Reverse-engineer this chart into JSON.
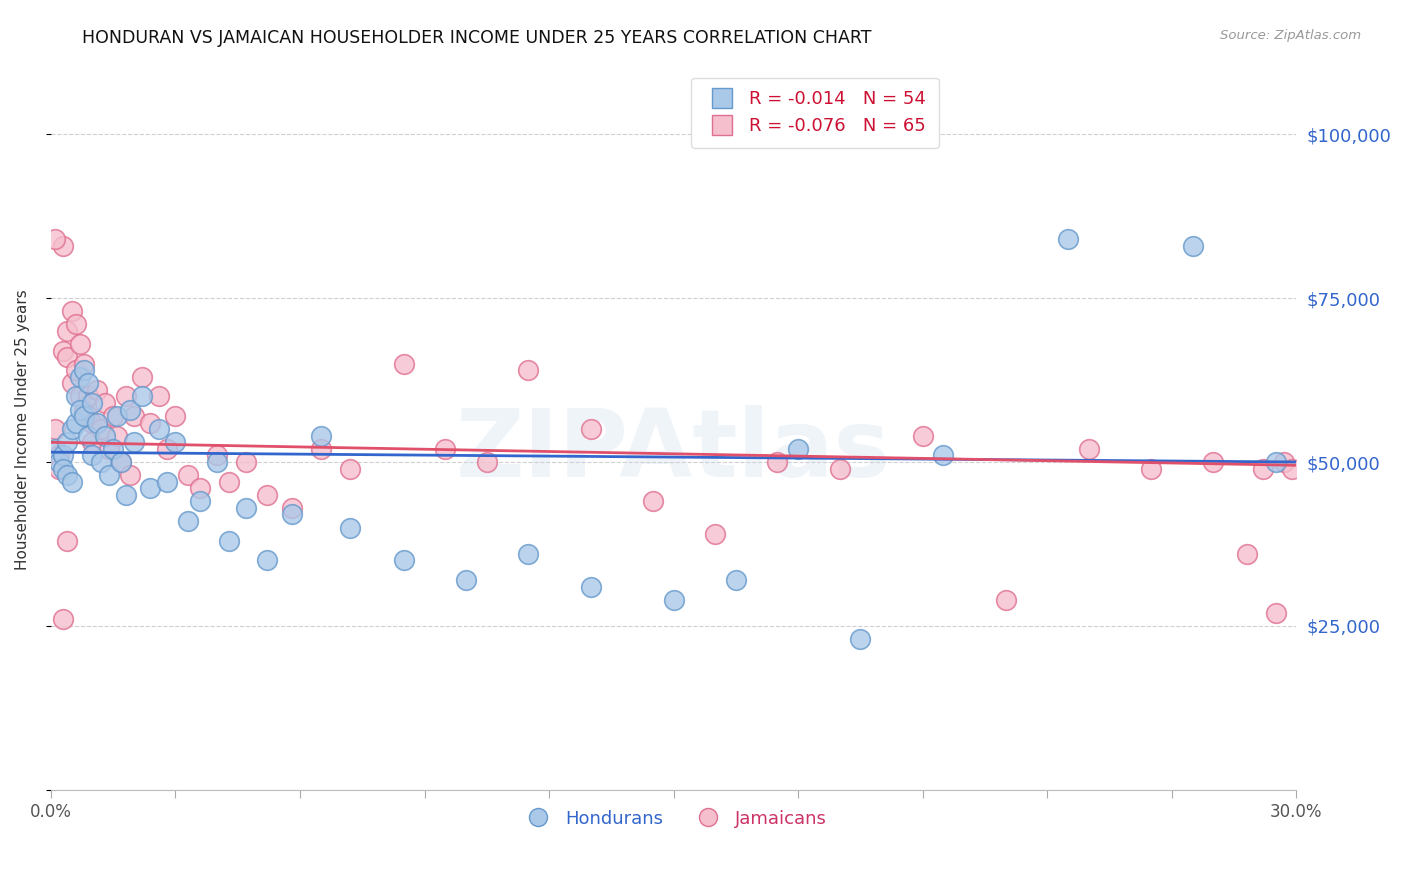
{
  "title": "HONDURAN VS JAMAICAN HOUSEHOLDER INCOME UNDER 25 YEARS CORRELATION CHART",
  "source": "Source: ZipAtlas.com",
  "ylabel": "Householder Income Under 25 years",
  "xmin": 0.0,
  "xmax": 0.3,
  "ymin": 0,
  "ymax": 110000,
  "yticks": [
    0,
    25000,
    50000,
    75000,
    100000
  ],
  "ytick_labels": [
    "",
    "$25,000",
    "$50,000",
    "$75,000",
    "$100,000"
  ],
  "honduran_color": "#aac8e8",
  "honduran_edge": "#6699cc",
  "jamaican_color": "#f5bfce",
  "jamaican_edge": "#e07090",
  "line_honduran": "#3366cc",
  "line_jamaican": "#e0506a",
  "legend_label_honduran": "Hondurans",
  "legend_label_jamaican": "Jamaicans",
  "legend_r_honduran": "R = -0.014",
  "legend_n_honduran": "N = 54",
  "legend_r_jamaican": "R = -0.076",
  "legend_n_jamaican": "N = 65",
  "watermark": "ZIPAtlas",
  "background_color": "#ffffff",
  "grid_color": "#d0d0d0",
  "trend_h_y0": 51500,
  "trend_h_y1": 50000,
  "trend_j_y0": 53000,
  "trend_j_y1": 49500,
  "hondurans_x": [
    0.001,
    0.002,
    0.003,
    0.003,
    0.004,
    0.004,
    0.005,
    0.005,
    0.006,
    0.006,
    0.007,
    0.007,
    0.008,
    0.008,
    0.009,
    0.009,
    0.01,
    0.01,
    0.011,
    0.012,
    0.013,
    0.014,
    0.015,
    0.016,
    0.017,
    0.018,
    0.019,
    0.02,
    0.022,
    0.024,
    0.026,
    0.028,
    0.03,
    0.033,
    0.036,
    0.04,
    0.043,
    0.047,
    0.052,
    0.058,
    0.065,
    0.072,
    0.085,
    0.1,
    0.115,
    0.13,
    0.15,
    0.165,
    0.18,
    0.195,
    0.215,
    0.245,
    0.275,
    0.295
  ],
  "hondurans_y": [
    52000,
    50000,
    51000,
    49000,
    53000,
    48000,
    55000,
    47000,
    60000,
    56000,
    63000,
    58000,
    64000,
    57000,
    62000,
    54000,
    59000,
    51000,
    56000,
    50000,
    54000,
    48000,
    52000,
    57000,
    50000,
    45000,
    58000,
    53000,
    60000,
    46000,
    55000,
    47000,
    53000,
    41000,
    44000,
    50000,
    38000,
    43000,
    35000,
    42000,
    54000,
    40000,
    35000,
    32000,
    36000,
    31000,
    29000,
    32000,
    52000,
    23000,
    51000,
    84000,
    83000,
    50000
  ],
  "jamaicans_x": [
    0.001,
    0.002,
    0.003,
    0.003,
    0.004,
    0.004,
    0.005,
    0.005,
    0.006,
    0.006,
    0.007,
    0.007,
    0.008,
    0.008,
    0.009,
    0.009,
    0.01,
    0.01,
    0.011,
    0.012,
    0.013,
    0.014,
    0.015,
    0.016,
    0.017,
    0.018,
    0.019,
    0.02,
    0.022,
    0.024,
    0.026,
    0.028,
    0.03,
    0.033,
    0.036,
    0.04,
    0.043,
    0.047,
    0.052,
    0.058,
    0.065,
    0.072,
    0.085,
    0.095,
    0.105,
    0.115,
    0.13,
    0.145,
    0.16,
    0.175,
    0.19,
    0.21,
    0.23,
    0.25,
    0.265,
    0.28,
    0.288,
    0.292,
    0.295,
    0.297,
    0.299,
    0.001,
    0.002,
    0.003,
    0.004
  ],
  "jamaicans_y": [
    55000,
    51000,
    83000,
    67000,
    70000,
    66000,
    73000,
    62000,
    71000,
    64000,
    68000,
    60000,
    65000,
    58000,
    60000,
    57000,
    56000,
    53000,
    61000,
    55000,
    59000,
    52000,
    57000,
    54000,
    50000,
    60000,
    48000,
    57000,
    63000,
    56000,
    60000,
    52000,
    57000,
    48000,
    46000,
    51000,
    47000,
    50000,
    45000,
    43000,
    52000,
    49000,
    65000,
    52000,
    50000,
    64000,
    55000,
    44000,
    39000,
    50000,
    49000,
    54000,
    29000,
    52000,
    49000,
    50000,
    36000,
    49000,
    27000,
    50000,
    49000,
    84000,
    49000,
    26000,
    38000
  ]
}
